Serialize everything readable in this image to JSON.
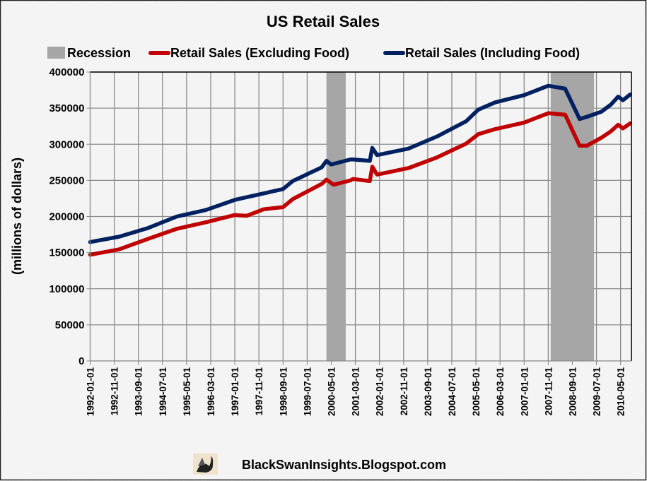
{
  "chart_data": {
    "type": "line",
    "title": "US Retail Sales",
    "xlabel": "",
    "ylabel": "(millions of dollars)",
    "ylim": [
      0,
      400000
    ],
    "yticks": [
      0,
      50000,
      100000,
      150000,
      200000,
      250000,
      300000,
      350000,
      400000
    ],
    "xlim": [
      "1992-01",
      "2010-09"
    ],
    "xtick_labels": [
      "1992-01-01",
      "1992-11-01",
      "1993-09-01",
      "1994-07-01",
      "1995-05-01",
      "1996-03-01",
      "1997-01-01",
      "1997-11-01",
      "1998-09-01",
      "1999-07-01",
      "2000-05-01",
      "2001-03-01",
      "2002-01-01",
      "2002-11-01",
      "2003-09-01",
      "2004-07-01",
      "2005-05-01",
      "2006-03-01",
      "2007-01-01",
      "2007-11-01",
      "2008-09-01",
      "2009-07-01",
      "2010-05-01"
    ],
    "grid": true,
    "legend_position": "top",
    "legend": [
      "Recession",
      "Retail Sales (Excluding Food)",
      "Retail Sales (Including Food)"
    ],
    "recessions": [
      {
        "start": "2000-03",
        "end": "2000-11"
      },
      {
        "start": "2007-12",
        "end": "2009-06"
      }
    ],
    "series": [
      {
        "name": "Retail Sales (Excluding Food)",
        "color": "#c00000",
        "points": [
          [
            "1992-01",
            147000
          ],
          [
            "1993-01",
            154500
          ],
          [
            "1994-01",
            169000
          ],
          [
            "1995-01",
            183000
          ],
          [
            "1996-01",
            192000
          ],
          [
            "1997-01",
            202000
          ],
          [
            "1997-06",
            201000
          ],
          [
            "1998-01",
            210000
          ],
          [
            "1998-09",
            213000
          ],
          [
            "1999-01",
            224000
          ],
          [
            "2000-01",
            245000
          ],
          [
            "2000-03",
            251000
          ],
          [
            "2000-06",
            244000
          ],
          [
            "2001-01",
            250000
          ],
          [
            "2001-02",
            252000
          ],
          [
            "2001-09",
            249000
          ],
          [
            "2001-10",
            269000
          ],
          [
            "2001-12",
            258000
          ],
          [
            "2003-01",
            267000
          ],
          [
            "2004-01",
            282000
          ],
          [
            "2005-01",
            301000
          ],
          [
            "2005-06",
            314000
          ],
          [
            "2006-01",
            321000
          ],
          [
            "2007-01",
            330000
          ],
          [
            "2007-11",
            343000
          ],
          [
            "2008-06",
            341000
          ],
          [
            "2008-12",
            298000
          ],
          [
            "2009-03",
            298000
          ],
          [
            "2009-09",
            309000
          ],
          [
            "2010-01",
            318000
          ],
          [
            "2010-04",
            327000
          ],
          [
            "2010-06",
            322000
          ],
          [
            "2010-09",
            329000
          ]
        ]
      },
      {
        "name": "Retail Sales (Including Food)",
        "color": "#002060",
        "points": [
          [
            "1992-01",
            164600
          ],
          [
            "1993-01",
            172000
          ],
          [
            "1994-01",
            184000
          ],
          [
            "1995-01",
            200000
          ],
          [
            "1996-01",
            209000
          ],
          [
            "1997-01",
            223000
          ],
          [
            "1998-01",
            232000
          ],
          [
            "1998-09",
            238000
          ],
          [
            "1999-01",
            249000
          ],
          [
            "2000-01",
            268000
          ],
          [
            "2000-03",
            277000
          ],
          [
            "2000-05",
            272000
          ],
          [
            "2001-01",
            279000
          ],
          [
            "2001-02",
            279000
          ],
          [
            "2001-09",
            277000
          ],
          [
            "2001-10",
            295000
          ],
          [
            "2001-12",
            285000
          ],
          [
            "2003-01",
            294000
          ],
          [
            "2004-01",
            311000
          ],
          [
            "2005-01",
            332000
          ],
          [
            "2005-06",
            348000
          ],
          [
            "2006-01",
            358000
          ],
          [
            "2007-01",
            368000
          ],
          [
            "2007-11",
            381000
          ],
          [
            "2008-06",
            377000
          ],
          [
            "2008-12",
            335000
          ],
          [
            "2009-03",
            338000
          ],
          [
            "2009-09",
            345000
          ],
          [
            "2010-01",
            355000
          ],
          [
            "2010-04",
            366000
          ],
          [
            "2010-06",
            361000
          ],
          [
            "2010-09",
            369000
          ]
        ]
      }
    ],
    "recession_color": "#a6a6a6"
  },
  "watermark": "BlackSwanInsights.Blogspot.com"
}
